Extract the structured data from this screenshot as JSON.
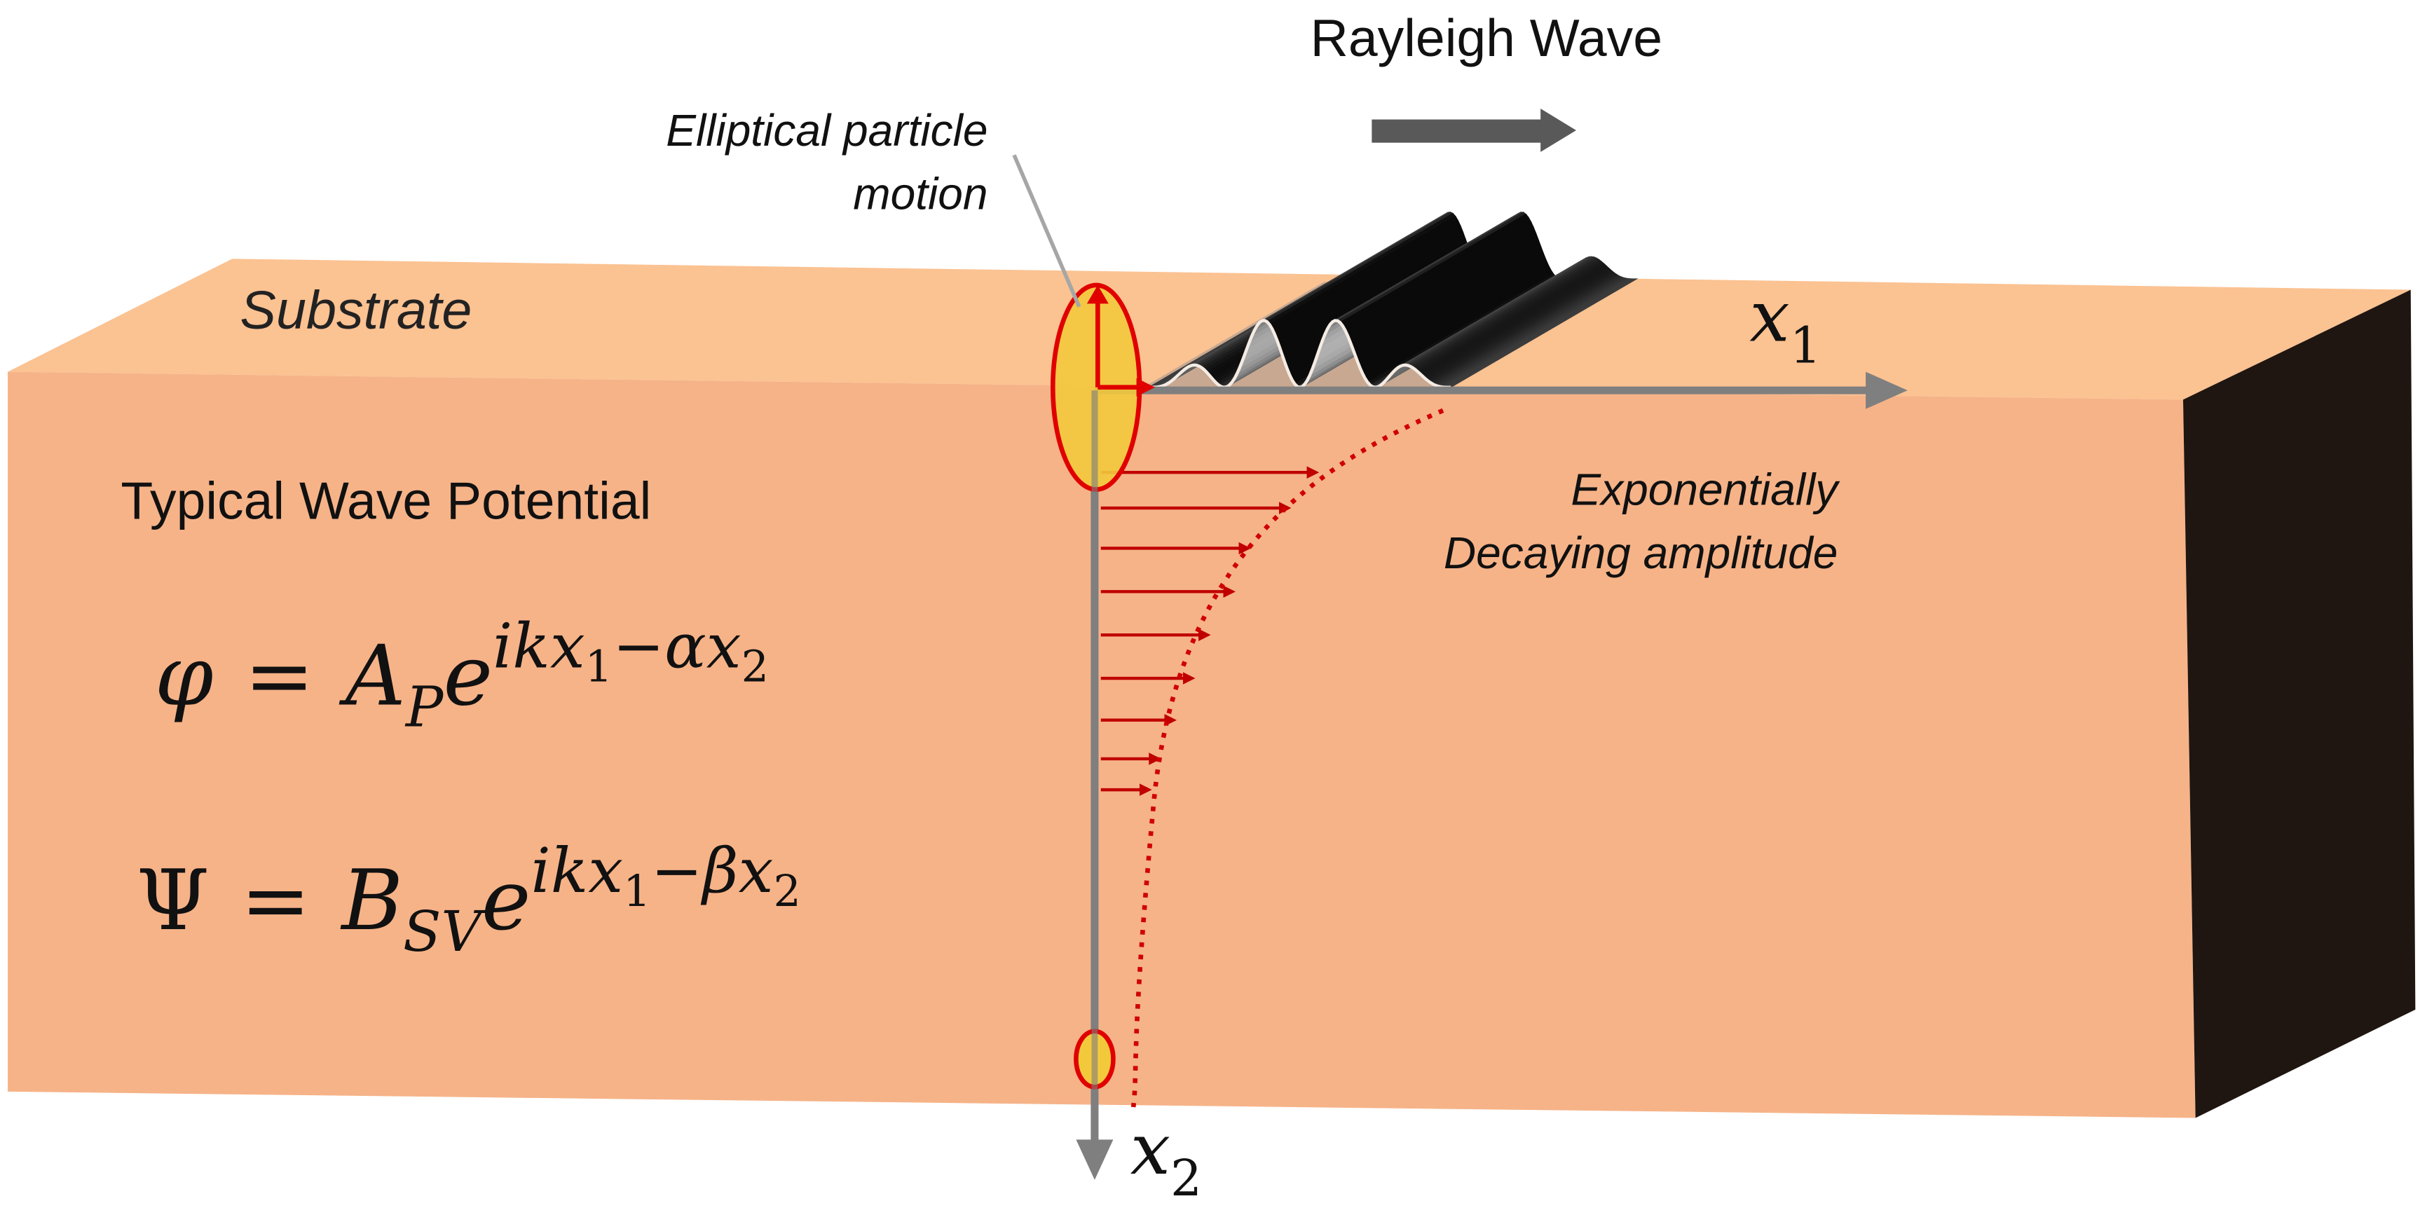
{
  "title": "Rayleigh Wave",
  "labels": {
    "particle_motion": [
      "Elliptical particle",
      "motion"
    ],
    "substrate": "Substrate",
    "potential_heading": "Typical Wave Potential",
    "decay": [
      "Exponentially",
      "Decaying amplitude"
    ]
  },
  "axes": {
    "x1": {
      "base": "x",
      "sub": "1"
    },
    "x2": {
      "base": "x",
      "sub": "2"
    }
  },
  "equations": [
    {
      "lhs": "φ",
      "eq": "=",
      "coef": "A",
      "coef_sub": "P",
      "base": "e",
      "exp": "ikx",
      "exp_sub1": "1",
      "exp_mid": "−αx",
      "exp_sub2": "2"
    },
    {
      "lhs": "Ψ",
      "eq": "=",
      "coef": "B",
      "coef_sub": "SV",
      "base": "e",
      "exp": "ikx",
      "exp_sub1": "1",
      "exp_mid": "−βx",
      "exp_sub2": "2"
    }
  ]
}
